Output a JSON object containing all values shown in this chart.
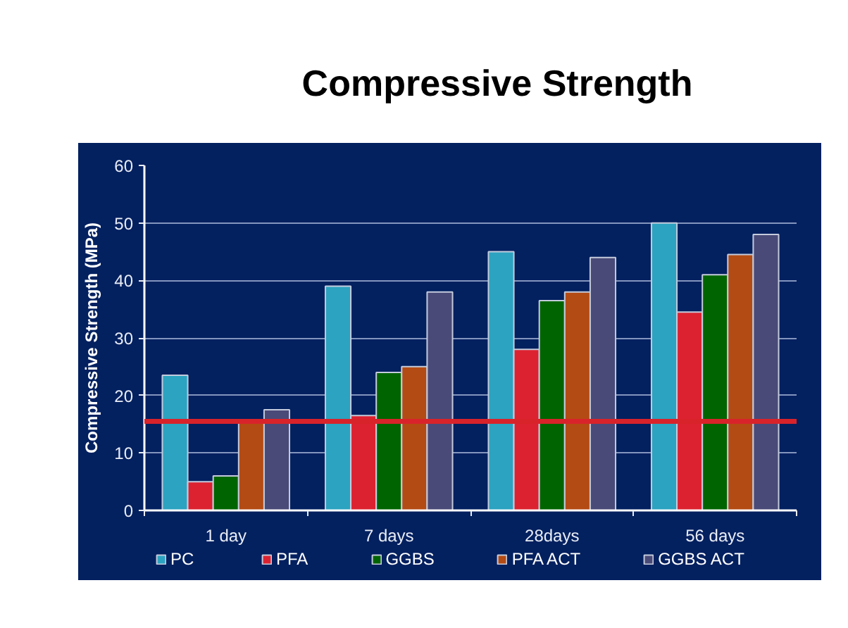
{
  "chart_data": {
    "type": "bar",
    "title": "Compressive Strength",
    "ylabel": "Compressive Strength (MPa)",
    "categories": [
      "1 day",
      "7 days",
      "28days",
      "56 days"
    ],
    "series": [
      {
        "name": "PC",
        "color": "#2ca3c0",
        "values": [
          23.5,
          39,
          45,
          50
        ]
      },
      {
        "name": "PFA",
        "color": "#dc2230",
        "values": [
          5,
          16.5,
          28,
          34.5
        ]
      },
      {
        "name": "GGBS",
        "color": "#006400",
        "values": [
          6,
          24,
          36.5,
          41
        ]
      },
      {
        "name": "PFA ACT",
        "color": "#b34b14",
        "values": [
          15.5,
          25,
          38,
          44.5
        ]
      },
      {
        "name": "GGBS ACT",
        "color": "#4a4a78",
        "values": [
          17.5,
          38,
          44,
          48
        ]
      }
    ],
    "ylim": [
      0,
      60
    ],
    "yticks": [
      0,
      10,
      20,
      30,
      40,
      50,
      60
    ],
    "grid": "y",
    "legend": "bottom",
    "ref_lines": [
      {
        "axis": "y",
        "value": 15.5,
        "color": "#d8232a"
      }
    ]
  }
}
